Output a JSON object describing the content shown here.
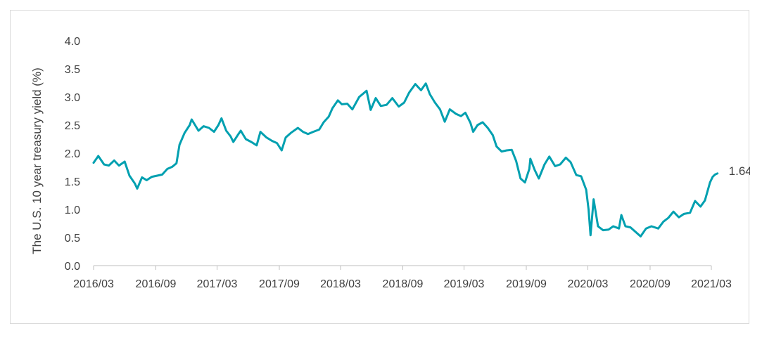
{
  "chart_data": {
    "type": "line",
    "title": "",
    "xlabel": "",
    "ylabel": "The U.S. 10 year treasury yield (%)",
    "ylim": [
      0,
      4.0
    ],
    "y_ticks": [
      "0.0",
      "0.5",
      "1.0",
      "1.5",
      "2.0",
      "2.5",
      "3.0",
      "3.5",
      "4.0"
    ],
    "x_ticks": [
      "2016/03",
      "2016/09",
      "2017/03",
      "2017/09",
      "2018/03",
      "2018/09",
      "2019/03",
      "2019/09",
      "2020/03",
      "2020/09",
      "2021/03"
    ],
    "grid": false,
    "legend": "none",
    "series": [
      {
        "color": "#00a0b0",
        "end_label": "1.64",
        "points": [
          [
            "2016-03-01",
            1.83
          ],
          [
            "2016-03-15",
            1.95
          ],
          [
            "2016-04-01",
            1.8
          ],
          [
            "2016-04-15",
            1.78
          ],
          [
            "2016-05-01",
            1.87
          ],
          [
            "2016-05-15",
            1.78
          ],
          [
            "2016-06-01",
            1.85
          ],
          [
            "2016-06-15",
            1.6
          ],
          [
            "2016-07-01",
            1.46
          ],
          [
            "2016-07-08",
            1.37
          ],
          [
            "2016-07-22",
            1.57
          ],
          [
            "2016-08-05",
            1.52
          ],
          [
            "2016-08-20",
            1.58
          ],
          [
            "2016-09-05",
            1.6
          ],
          [
            "2016-09-20",
            1.62
          ],
          [
            "2016-10-05",
            1.72
          ],
          [
            "2016-10-20",
            1.76
          ],
          [
            "2016-11-01",
            1.82
          ],
          [
            "2016-11-10",
            2.15
          ],
          [
            "2016-11-25",
            2.36
          ],
          [
            "2016-12-10",
            2.5
          ],
          [
            "2016-12-16",
            2.6
          ],
          [
            "2017-01-05",
            2.4
          ],
          [
            "2017-01-20",
            2.48
          ],
          [
            "2017-02-05",
            2.45
          ],
          [
            "2017-02-20",
            2.38
          ],
          [
            "2017-03-05",
            2.5
          ],
          [
            "2017-03-14",
            2.62
          ],
          [
            "2017-03-28",
            2.4
          ],
          [
            "2017-04-10",
            2.3
          ],
          [
            "2017-04-18",
            2.2
          ],
          [
            "2017-05-01",
            2.32
          ],
          [
            "2017-05-10",
            2.4
          ],
          [
            "2017-05-25",
            2.25
          ],
          [
            "2017-06-10",
            2.2
          ],
          [
            "2017-06-26",
            2.14
          ],
          [
            "2017-07-07",
            2.38
          ],
          [
            "2017-07-25",
            2.28
          ],
          [
            "2017-08-10",
            2.22
          ],
          [
            "2017-08-25",
            2.18
          ],
          [
            "2017-09-08",
            2.05
          ],
          [
            "2017-09-20",
            2.28
          ],
          [
            "2017-10-05",
            2.36
          ],
          [
            "2017-10-26",
            2.45
          ],
          [
            "2017-11-10",
            2.38
          ],
          [
            "2017-11-25",
            2.34
          ],
          [
            "2017-12-10",
            2.38
          ],
          [
            "2017-12-28",
            2.42
          ],
          [
            "2018-01-10",
            2.55
          ],
          [
            "2018-01-25",
            2.65
          ],
          [
            "2018-02-05",
            2.8
          ],
          [
            "2018-02-21",
            2.94
          ],
          [
            "2018-03-05",
            2.87
          ],
          [
            "2018-03-21",
            2.88
          ],
          [
            "2018-04-05",
            2.78
          ],
          [
            "2018-04-25",
            3.0
          ],
          [
            "2018-05-17",
            3.11
          ],
          [
            "2018-05-29",
            2.77
          ],
          [
            "2018-06-13",
            2.98
          ],
          [
            "2018-06-28",
            2.84
          ],
          [
            "2018-07-15",
            2.86
          ],
          [
            "2018-08-01",
            2.98
          ],
          [
            "2018-08-20",
            2.83
          ],
          [
            "2018-09-05",
            2.9
          ],
          [
            "2018-09-20",
            3.08
          ],
          [
            "2018-10-08",
            3.23
          ],
          [
            "2018-10-25",
            3.12
          ],
          [
            "2018-11-08",
            3.24
          ],
          [
            "2018-11-20",
            3.05
          ],
          [
            "2018-12-05",
            2.9
          ],
          [
            "2018-12-20",
            2.78
          ],
          [
            "2019-01-03",
            2.56
          ],
          [
            "2019-01-18",
            2.78
          ],
          [
            "2019-02-05",
            2.7
          ],
          [
            "2019-02-20",
            2.66
          ],
          [
            "2019-03-05",
            2.72
          ],
          [
            "2019-03-20",
            2.54
          ],
          [
            "2019-03-28",
            2.38
          ],
          [
            "2019-04-10",
            2.5
          ],
          [
            "2019-04-25",
            2.55
          ],
          [
            "2019-05-10",
            2.45
          ],
          [
            "2019-05-25",
            2.32
          ],
          [
            "2019-06-05",
            2.12
          ],
          [
            "2019-06-20",
            2.03
          ],
          [
            "2019-07-05",
            2.05
          ],
          [
            "2019-07-20",
            2.06
          ],
          [
            "2019-08-02",
            1.86
          ],
          [
            "2019-08-15",
            1.55
          ],
          [
            "2019-08-28",
            1.48
          ],
          [
            "2019-09-10",
            1.72
          ],
          [
            "2019-09-13",
            1.9
          ],
          [
            "2019-09-26",
            1.7
          ],
          [
            "2019-10-08",
            1.55
          ],
          [
            "2019-10-25",
            1.8
          ],
          [
            "2019-11-08",
            1.94
          ],
          [
            "2019-11-25",
            1.77
          ],
          [
            "2019-12-10",
            1.8
          ],
          [
            "2019-12-27",
            1.92
          ],
          [
            "2020-01-10",
            1.84
          ],
          [
            "2020-01-27",
            1.61
          ],
          [
            "2020-02-10",
            1.59
          ],
          [
            "2020-02-25",
            1.35
          ],
          [
            "2020-03-03",
            1.0
          ],
          [
            "2020-03-09",
            0.54
          ],
          [
            "2020-03-18",
            1.18
          ],
          [
            "2020-03-31",
            0.7
          ],
          [
            "2020-04-15",
            0.63
          ],
          [
            "2020-05-01",
            0.64
          ],
          [
            "2020-05-15",
            0.7
          ],
          [
            "2020-06-01",
            0.66
          ],
          [
            "2020-06-08",
            0.9
          ],
          [
            "2020-06-20",
            0.7
          ],
          [
            "2020-07-05",
            0.68
          ],
          [
            "2020-07-20",
            0.6
          ],
          [
            "2020-08-04",
            0.52
          ],
          [
            "2020-08-20",
            0.66
          ],
          [
            "2020-09-05",
            0.7
          ],
          [
            "2020-09-25",
            0.66
          ],
          [
            "2020-10-10",
            0.78
          ],
          [
            "2020-10-25",
            0.85
          ],
          [
            "2020-11-09",
            0.96
          ],
          [
            "2020-11-25",
            0.86
          ],
          [
            "2020-12-10",
            0.92
          ],
          [
            "2020-12-28",
            0.94
          ],
          [
            "2021-01-12",
            1.15
          ],
          [
            "2021-01-28",
            1.05
          ],
          [
            "2021-02-10",
            1.16
          ],
          [
            "2021-02-25",
            1.48
          ],
          [
            "2021-03-05",
            1.58
          ],
          [
            "2021-03-12",
            1.62
          ],
          [
            "2021-03-19",
            1.64
          ]
        ]
      }
    ],
    "annotations": [
      {
        "text": "1.64"
      }
    ]
  }
}
